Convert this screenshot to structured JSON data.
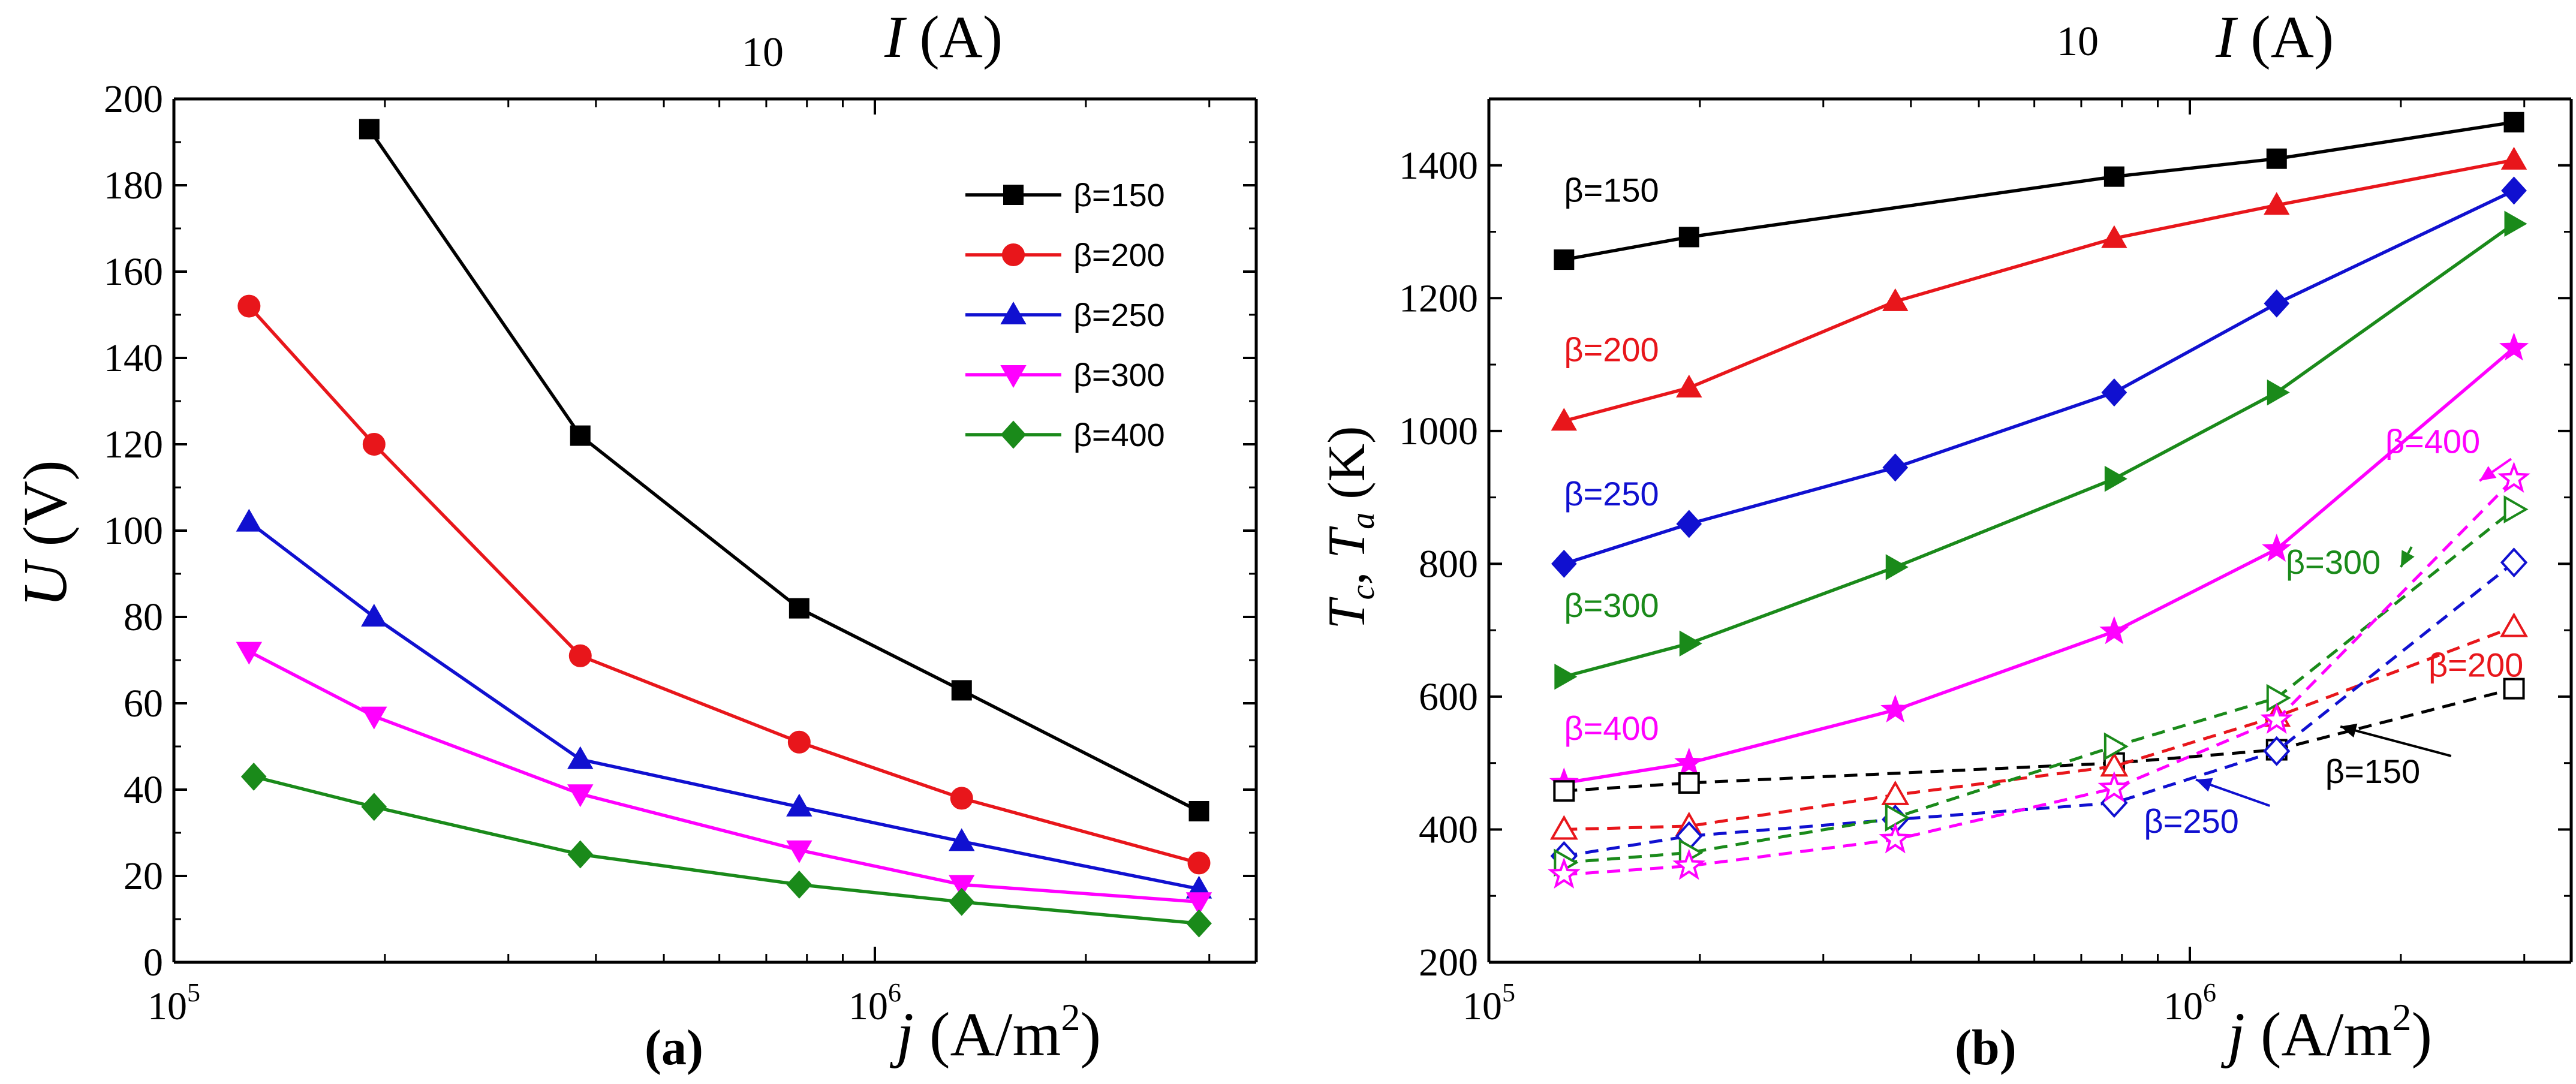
{
  "figure": {
    "panel_a": {
      "label": "(a)",
      "top_axis_number": "10",
      "top_axis_symbol": "I",
      "top_axis_unit": " (A)",
      "ylabel_symbol": "U",
      "ylabel_unit": " (V)",
      "xlabel_symbol": "j",
      "xlabel_unit": " (A/m",
      "xlabel_sup": "2",
      "xlabel_close": ")"
    },
    "panel_b": {
      "label": "(b)",
      "top_axis_number": "10",
      "top_axis_symbol": "I",
      "top_axis_unit": " (A)",
      "ylabel_tc": "T",
      "ylabel_tc_sub": "c",
      "ylabel_sep": ", ",
      "ylabel_ta": "T",
      "ylabel_ta_sub": "a",
      "ylabel_unit": " (K)",
      "xlabel_symbol": "j",
      "xlabel_unit": " (A/m",
      "xlabel_sup": "2",
      "xlabel_close": ")"
    }
  },
  "chart_data": [
    {
      "type": "line",
      "panel": "a",
      "xscale": "log",
      "xlim": [
        100000,
        3500000
      ],
      "ylim": [
        0,
        200
      ],
      "xlabel": "j (A/m2)",
      "ylabel": "U (V)",
      "x_major_ticks": [
        {
          "value": 100000,
          "base": "10",
          "exp": "5"
        },
        {
          "value": 1000000,
          "base": "10",
          "exp": "6"
        }
      ],
      "y_ticks": [
        0,
        20,
        40,
        60,
        80,
        100,
        120,
        140,
        160,
        180,
        200
      ],
      "legend_position": "top-right",
      "series": [
        {
          "name": "β=150",
          "color": "#000000",
          "marker": "square",
          "x": [
            190000,
            380000,
            780000,
            1330000,
            2900000
          ],
          "y": [
            193,
            122,
            82,
            63,
            35
          ]
        },
        {
          "name": "β=200",
          "color": "#e8161b",
          "marker": "circle",
          "x": [
            128000,
            193000,
            380000,
            780000,
            1330000,
            2900000
          ],
          "y": [
            152,
            120,
            71,
            51,
            38,
            23
          ]
        },
        {
          "name": "β=250",
          "color": "#1010d0",
          "marker": "triangle-up",
          "x": [
            128000,
            193000,
            380000,
            780000,
            1330000,
            2900000
          ],
          "y": [
            102,
            80,
            47,
            36,
            28,
            17
          ]
        },
        {
          "name": "β=300",
          "color": "#ff00ff",
          "marker": "triangle-down",
          "x": [
            128000,
            193000,
            380000,
            780000,
            1330000,
            2900000
          ],
          "y": [
            72,
            57,
            39,
            26,
            18,
            14
          ]
        },
        {
          "name": "β=400",
          "color": "#1a8a1a",
          "marker": "diamond",
          "x": [
            130000,
            193000,
            380000,
            780000,
            1330000,
            2900000
          ],
          "y": [
            43,
            36,
            25,
            18,
            14,
            9
          ]
        }
      ]
    },
    {
      "type": "line",
      "panel": "b",
      "xscale": "log",
      "xlim": [
        100000,
        3500000
      ],
      "ylim": [
        200,
        1500
      ],
      "xlabel": "j (A/m2)",
      "ylabel": "Tc, Ta (K)",
      "x_major_ticks": [
        {
          "value": 100000,
          "base": "10",
          "exp": "5"
        },
        {
          "value": 1000000,
          "base": "10",
          "exp": "6"
        }
      ],
      "y_ticks": [
        200,
        400,
        600,
        800,
        1000,
        1200,
        1400
      ],
      "series": [
        {
          "name": "β=150",
          "kind": "Tc",
          "color": "#000000",
          "marker": "square",
          "filled": true,
          "dashed": false,
          "x": [
            128000,
            193000,
            780000,
            1330000,
            2900000
          ],
          "y": [
            1258,
            1292,
            1383,
            1410,
            1465
          ]
        },
        {
          "name": "β=200",
          "kind": "Tc",
          "color": "#e8161b",
          "marker": "triangle-up",
          "filled": true,
          "dashed": false,
          "x": [
            128000,
            193000,
            380000,
            780000,
            1330000,
            2900000
          ],
          "y": [
            1015,
            1065,
            1195,
            1290,
            1340,
            1408
          ]
        },
        {
          "name": "β=250",
          "kind": "Tc",
          "color": "#1010d0",
          "marker": "diamond",
          "filled": true,
          "dashed": false,
          "x": [
            128000,
            193000,
            380000,
            780000,
            1330000,
            2900000
          ],
          "y": [
            800,
            860,
            945,
            1058,
            1192,
            1362
          ]
        },
        {
          "name": "β=300",
          "kind": "Tc",
          "color": "#1a8a1a",
          "marker": "triangle-right",
          "filled": true,
          "dashed": false,
          "x": [
            128000,
            193000,
            380000,
            780000,
            1330000,
            2900000
          ],
          "y": [
            630,
            680,
            795,
            928,
            1058,
            1312
          ]
        },
        {
          "name": "β=400",
          "kind": "Tc",
          "color": "#ff00ff",
          "marker": "star",
          "filled": true,
          "dashed": false,
          "x": [
            128000,
            193000,
            380000,
            780000,
            1330000,
            2900000
          ],
          "y": [
            470,
            500,
            580,
            698,
            822,
            1125
          ]
        },
        {
          "name": "β=150",
          "kind": "Ta",
          "color": "#000000",
          "marker": "square",
          "filled": false,
          "dashed": true,
          "x": [
            128000,
            193000,
            780000,
            1330000,
            2900000
          ],
          "y": [
            458,
            470,
            500,
            520,
            612
          ]
        },
        {
          "name": "β=200",
          "kind": "Ta",
          "color": "#e8161b",
          "marker": "triangle-up",
          "filled": false,
          "dashed": true,
          "x": [
            128000,
            193000,
            380000,
            780000,
            1330000,
            2900000
          ],
          "y": [
            400,
            405,
            452,
            495,
            570,
            705
          ]
        },
        {
          "name": "β=250",
          "kind": "Ta",
          "color": "#1010d0",
          "marker": "diamond",
          "filled": false,
          "dashed": true,
          "x": [
            128000,
            193000,
            380000,
            780000,
            1330000,
            2900000
          ],
          "y": [
            360,
            390,
            415,
            440,
            518,
            802
          ]
        },
        {
          "name": "β=300",
          "kind": "Ta",
          "color": "#1a8a1a",
          "marker": "triangle-right",
          "filled": false,
          "dashed": true,
          "x": [
            128000,
            193000,
            380000,
            780000,
            1330000,
            2900000
          ],
          "y": [
            350,
            365,
            418,
            525,
            598,
            882
          ]
        },
        {
          "name": "β=400",
          "kind": "Ta",
          "color": "#ff00ff",
          "marker": "star",
          "filled": false,
          "dashed": true,
          "x": [
            128000,
            193000,
            380000,
            780000,
            1330000,
            2900000
          ],
          "y": [
            332,
            345,
            385,
            462,
            565,
            928
          ]
        }
      ],
      "annotations": [
        {
          "text": "β=150",
          "color": "#000000",
          "x": 128000,
          "y": 1345,
          "anchor": "start"
        },
        {
          "text": "β=200",
          "color": "#e8161b",
          "x": 128000,
          "y": 1105,
          "anchor": "start"
        },
        {
          "text": "β=250",
          "color": "#1010d0",
          "x": 128000,
          "y": 888,
          "anchor": "start"
        },
        {
          "text": "β=300",
          "color": "#1a8a1a",
          "x": 128000,
          "y": 720,
          "anchor": "start"
        },
        {
          "text": "β=400",
          "color": "#ff00ff",
          "x": 128000,
          "y": 535,
          "anchor": "start"
        },
        {
          "text": "β=400",
          "color": "#ff00ff",
          "x": 1900000,
          "y": 967,
          "anchor": "start",
          "arrow_to": [
            2590000,
            925
          ]
        },
        {
          "text": "β=300",
          "color": "#1a8a1a",
          "x": 1370000,
          "y": 785,
          "anchor": "start",
          "arrow_to": [
            2000000,
            795
          ]
        },
        {
          "text": "β=200",
          "color": "#e8161b",
          "x": 2190000,
          "y": 630,
          "anchor": "start"
        },
        {
          "text": "β=150",
          "color": "#000000",
          "x": 1560000,
          "y": 470,
          "anchor": "start",
          "arrow_to": [
            1640000,
            555
          ]
        },
        {
          "text": "β=250",
          "color": "#1010d0",
          "x": 860000,
          "y": 395,
          "anchor": "start",
          "arrow_to": [
            1020000,
            475
          ]
        }
      ]
    }
  ]
}
